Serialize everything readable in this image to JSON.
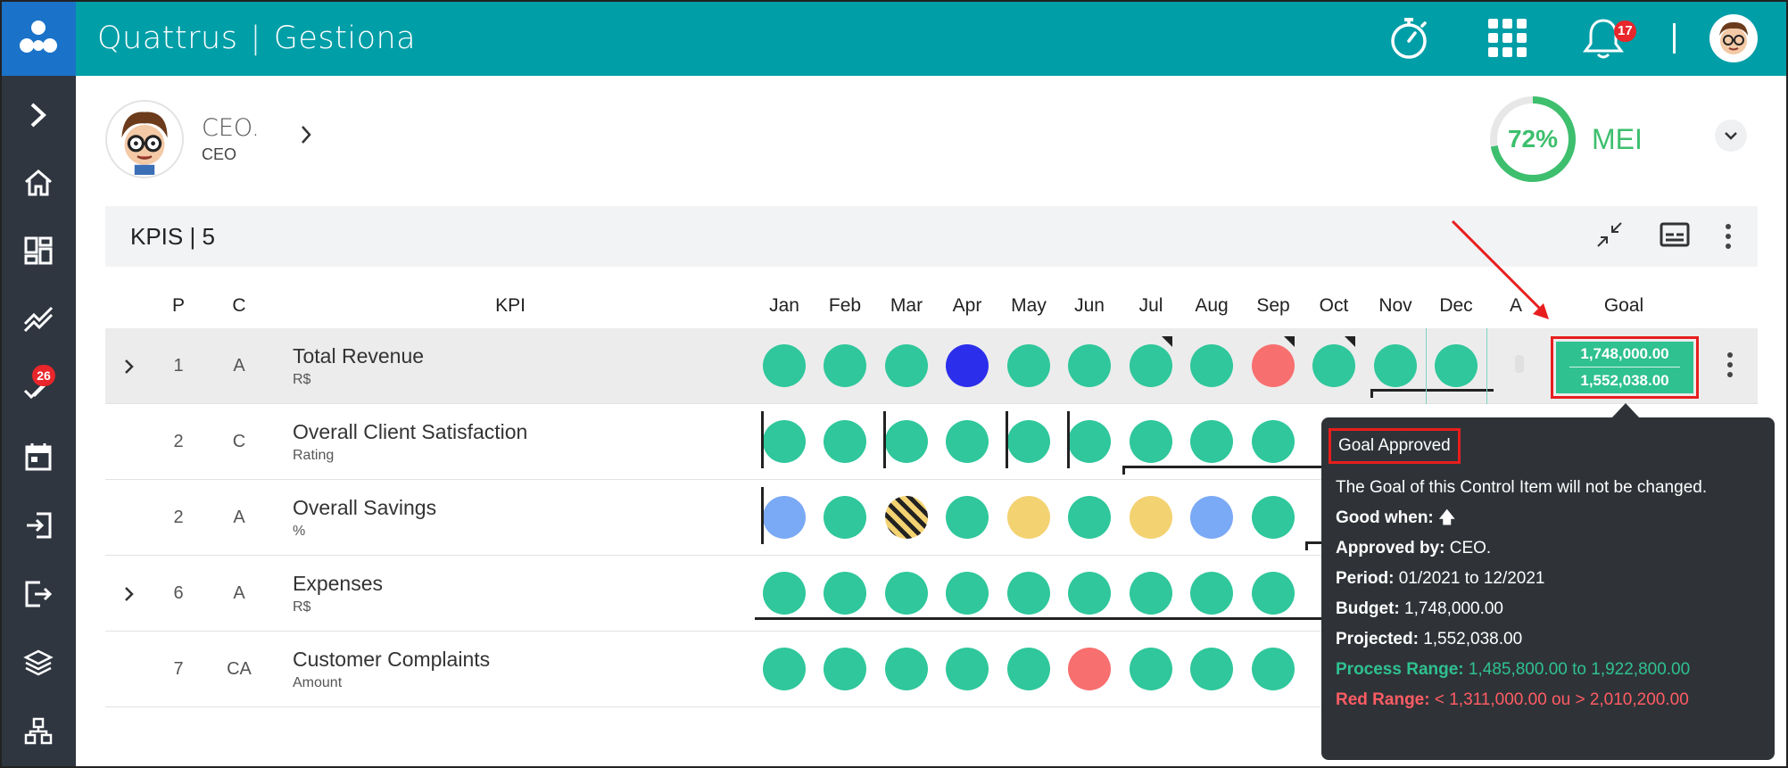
{
  "app": {
    "name": "Quattrus",
    "module": "Gestiona"
  },
  "header": {
    "notifications_count": "17"
  },
  "sidebar": {
    "tasks_badge": "26"
  },
  "profile": {
    "name": "CEO.",
    "role": "CEO"
  },
  "mei": {
    "percent_label": "72%",
    "percent": 72,
    "label": "MEI"
  },
  "kpis": {
    "title": "KPIS | 5",
    "columns": {
      "p": "P",
      "c": "C",
      "kpi": "KPI",
      "a": "A",
      "goal": "Goal"
    },
    "months": [
      "Jan",
      "Feb",
      "Mar",
      "Apr",
      "May",
      "Jun",
      "Jul",
      "Aug",
      "Sep",
      "Oct",
      "Nov",
      "Dec"
    ],
    "rows": [
      {
        "p": "1",
        "c": "A",
        "name": "Total Revenue",
        "unit": "R$",
        "expandable": true,
        "status": [
          "green",
          "green",
          "green",
          "blue",
          "green",
          "green",
          "green",
          "green",
          "red",
          "green",
          "green",
          "green"
        ]
      },
      {
        "p": "2",
        "c": "C",
        "name": "Overall Client Satisfaction",
        "unit": "Rating",
        "expandable": false,
        "status": [
          "green",
          "green",
          "green",
          "green",
          "green",
          "green",
          "green",
          "green",
          "green"
        ]
      },
      {
        "p": "2",
        "c": "A",
        "name": "Overall Savings",
        "unit": "%",
        "expandable": false,
        "status": [
          "lightblue",
          "green",
          "striped",
          "green",
          "yellow",
          "green",
          "yellow",
          "lightblue",
          "green"
        ]
      },
      {
        "p": "6",
        "c": "A",
        "name": "Expenses",
        "unit": "R$",
        "expandable": true,
        "status": [
          "green",
          "green",
          "green",
          "green",
          "green",
          "green",
          "green",
          "green",
          "green"
        ]
      },
      {
        "p": "7",
        "c": "CA",
        "name": "Customer Complaints",
        "unit": "Amount",
        "expandable": false,
        "status": [
          "green",
          "green",
          "green",
          "green",
          "green",
          "red",
          "green",
          "green",
          "green"
        ]
      }
    ],
    "goal": {
      "budget": "1,748,000.00",
      "projected": "1,552,038.00"
    }
  },
  "tooltip": {
    "title": "Goal Approved",
    "description": "The Goal of this Control Item will not be changed.",
    "good_when_label": "Good when:",
    "good_when_value": "🡅",
    "approved_by_label": "Approved by:",
    "approved_by_value": "CEO.",
    "period_label": "Period:",
    "period_value": "01/2021 to 12/2021",
    "budget_label": "Budget:",
    "budget_value": "1,748,000.00",
    "projected_label": "Projected:",
    "projected_value": "1,552,038.00",
    "process_range_label": "Process Range:",
    "process_range_value": "1,485,800.00 to 1,922,800.00",
    "red_range_label": "Red Range:",
    "red_range_value": "< 1,311,000.00 ou > 2,010,200.00"
  },
  "colors": {
    "topbar": "#009ea7",
    "logo": "#1a73c9",
    "sidebar": "#2f3640",
    "green": "#2fc79b",
    "red": "#f86f6f",
    "blue": "#2b2eea",
    "lightblue": "#7aa9f5",
    "yellow": "#f3d271",
    "annotation": "#e81e1e"
  }
}
